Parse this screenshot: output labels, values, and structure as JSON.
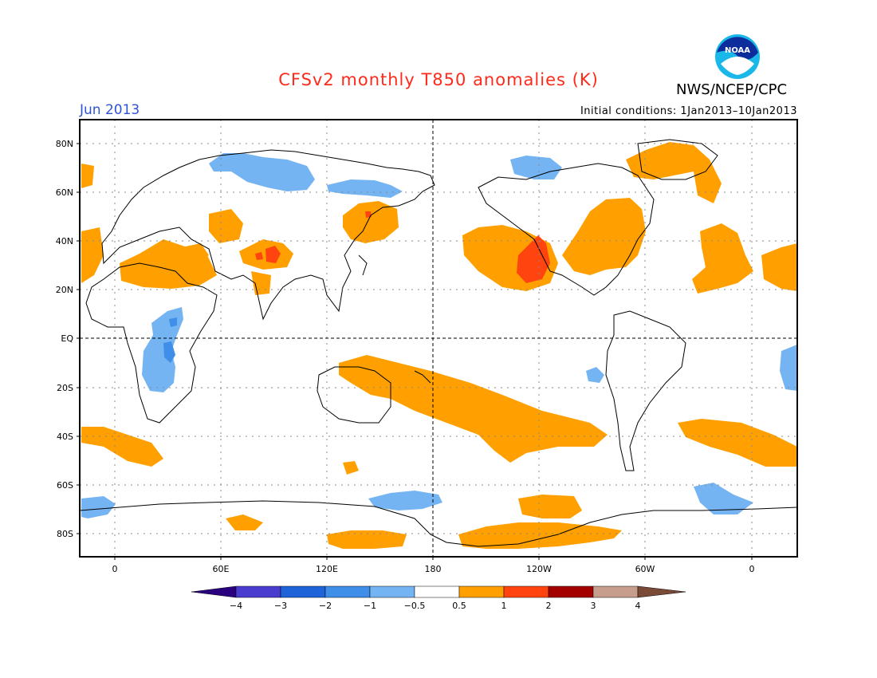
{
  "header": {
    "title": "CFSv2 monthly T850 anomalies (K)",
    "month": "Jun 2013",
    "initial_conditions": "Initial conditions: 1Jan2013–10Jan2013",
    "agency": "NWS/NCEP/CPC",
    "logo_text": "NOAA",
    "logo_icon": "noaa-logo-icon"
  },
  "map": {
    "lat_labels": [
      "80N",
      "60N",
      "40N",
      "20N",
      "EQ",
      "20S",
      "40S",
      "60S",
      "80S"
    ],
    "lon_labels": [
      "0",
      "60E",
      "120E",
      "180",
      "120W",
      "60W",
      "0"
    ]
  },
  "colorbar": {
    "colors": [
      "#2b007e",
      "#4b3cd0",
      "#1f63d8",
      "#3f8ee8",
      "#74b4f2",
      "#ffffff",
      "#ffa000",
      "#ff4410",
      "#a30000",
      "#c79d8e",
      "#7a4a36"
    ],
    "labels": [
      "−4",
      "−3",
      "−2",
      "−1",
      "−0.5",
      "0.5",
      "1",
      "2",
      "3",
      "4"
    ]
  }
}
